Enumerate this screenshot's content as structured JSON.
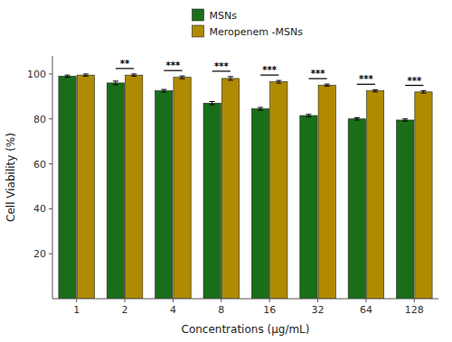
{
  "chart_data": {
    "type": "bar",
    "categories": [
      "1",
      "2",
      "4",
      "8",
      "16",
      "32",
      "64",
      "128"
    ],
    "series": [
      {
        "name": "MSNs",
        "color": "#1a6e1a",
        "values": [
          99.0,
          96.0,
          92.5,
          87.0,
          84.5,
          81.5,
          80.0,
          79.5
        ],
        "errors": [
          0.5,
          0.8,
          0.6,
          0.7,
          0.6,
          0.5,
          0.5,
          0.5
        ]
      },
      {
        "name": "Meropenem -MSNs",
        "color": "#b08a00",
        "values": [
          99.5,
          99.5,
          98.5,
          98.0,
          96.5,
          95.0,
          92.5,
          92.0
        ],
        "errors": [
          0.5,
          0.5,
          0.6,
          0.8,
          0.6,
          0.5,
          0.5,
          0.5
        ]
      }
    ],
    "xlabel": "Concentrations (μg/mL)",
    "ylabel": "Cell Viability (%)",
    "ylim": [
      0,
      108
    ],
    "yticks": [
      20,
      40,
      60,
      80,
      100
    ],
    "annotations": [
      {
        "category": "2",
        "text": "**"
      },
      {
        "category": "4",
        "text": "***"
      },
      {
        "category": "8",
        "text": "***"
      },
      {
        "category": "16",
        "text": "***"
      },
      {
        "category": "32",
        "text": "***"
      },
      {
        "category": "64",
        "text": "***"
      },
      {
        "category": "128",
        "text": "***"
      }
    ],
    "grid": false,
    "legend": "top"
  }
}
